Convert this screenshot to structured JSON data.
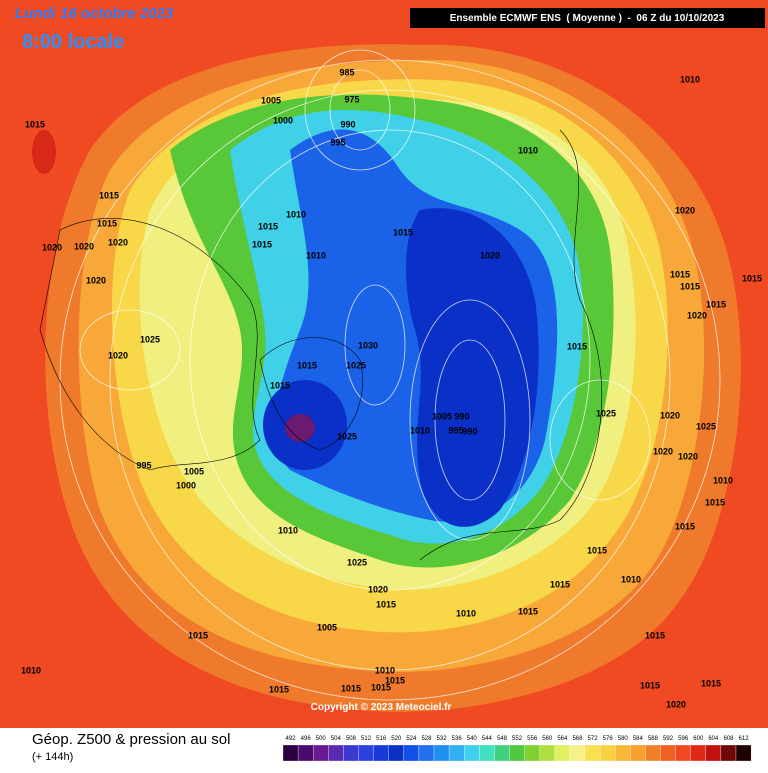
{
  "header": {
    "date": "Lundi 16 octobre 2023",
    "time": "8:00 locale",
    "run": "Ensemble ECMWF ENS  ( Moyenne )  -  06 Z du 10/10/2023"
  },
  "copyright": "Copyright © 2023 Meteociel.fr",
  "footer": {
    "title": "Géop. Z500 & pression au sol",
    "lead": "(+ 144h)"
  },
  "isobar_labels": [
    "1015",
    "985",
    "1005",
    "975",
    "1000",
    "990",
    "995",
    "1010",
    "1010",
    "1015",
    "1015",
    "1010",
    "1015",
    "1020",
    "1020",
    "1020",
    "1015",
    "1015",
    "1020",
    "1020",
    "1010",
    "1020",
    "1015",
    "1015",
    "1015",
    "1020",
    "1015",
    "1025",
    "1030",
    "1015",
    "1020",
    "1015",
    "1025",
    "1015",
    "1025",
    "1010",
    "1005",
    "990",
    "995",
    "990",
    "1025",
    "1020",
    "1025",
    "1020",
    "1020",
    "995",
    "1005",
    "1000",
    "1010",
    "1015",
    "1010",
    "1015",
    "1015",
    "1025",
    "1015",
    "1010",
    "1020",
    "1015",
    "1010",
    "1005",
    "1015",
    "1015",
    "1015",
    "1010",
    "1015",
    "1015",
    "1015",
    "1015",
    "1010",
    "1015",
    "1020",
    "1015"
  ],
  "colorbar": {
    "labels": [
      "492",
      "496",
      "500",
      "504",
      "508",
      "512",
      "516",
      "520",
      "524",
      "528",
      "532",
      "536",
      "540",
      "544",
      "548",
      "552",
      "556",
      "560",
      "564",
      "568",
      "572",
      "576",
      "580",
      "584",
      "588",
      "592",
      "596",
      "600",
      "604",
      "608",
      "612"
    ],
    "colors": [
      "#2a0040",
      "#4a0a6e",
      "#6a1a90",
      "#5a2ab0",
      "#3a3ad0",
      "#2a40e0",
      "#1a3ad8",
      "#0a30c8",
      "#1050e8",
      "#2070f0",
      "#2090f0",
      "#30b0f0",
      "#40d0f0",
      "#40e0c0",
      "#40d080",
      "#50c840",
      "#80d030",
      "#b0e040",
      "#e0f060",
      "#f8f088",
      "#f8e050",
      "#f8d040",
      "#f8b838",
      "#f8a030",
      "#f08028",
      "#f06020",
      "#f04820",
      "#e02818",
      "#c01010",
      "#700808",
      "#200000"
    ]
  }
}
